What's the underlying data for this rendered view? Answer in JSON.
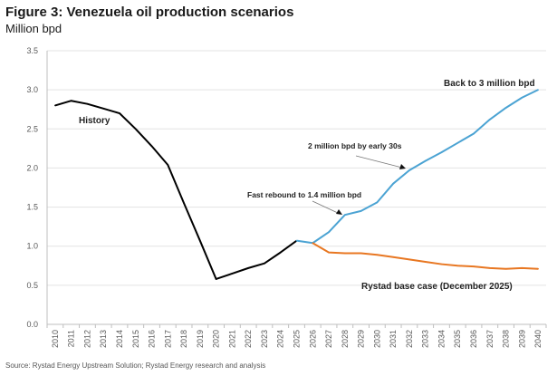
{
  "header": {
    "title": "Figure 3: Venezuela oil production scenarios",
    "subtitle": "Million bpd"
  },
  "footer": {
    "source": "Source: Rystad Energy Upstream Solution; Rystad Energy research and analysis"
  },
  "chart_data": {
    "type": "line",
    "title": "Figure 3: Venezuela oil production scenarios",
    "ylabel": "Million bpd",
    "xlabel": "",
    "ylim": [
      0,
      3.5
    ],
    "yticks": [
      "0.0",
      "0.5",
      "1.0",
      "1.5",
      "2.0",
      "2.5",
      "3.0",
      "3.5"
    ],
    "x": [
      2010,
      2011,
      2012,
      2013,
      2014,
      2015,
      2016,
      2017,
      2018,
      2019,
      2020,
      2021,
      2022,
      2023,
      2024,
      2025,
      2026,
      2027,
      2028,
      2029,
      2030,
      2031,
      2032,
      2033,
      2034,
      2035,
      2036,
      2037,
      2038,
      2039,
      2040
    ],
    "grid": "horizontal",
    "legend": "none",
    "series": [
      {
        "color": "#000000",
        "x": [
          2010,
          2011,
          2012,
          2013,
          2014,
          2015,
          2016,
          2017,
          2018,
          2019,
          2020,
          2021,
          2022,
          2023,
          2024,
          2025
        ],
        "values": [
          2.8,
          2.86,
          2.82,
          2.76,
          2.7,
          2.5,
          2.28,
          2.04,
          1.55,
          1.07,
          0.58,
          0.65,
          0.72,
          0.78,
          0.92,
          1.07
        ]
      },
      {
        "color": "#4BA3D3",
        "x": [
          2025,
          2026,
          2027,
          2028,
          2029,
          2030,
          2031,
          2032,
          2033,
          2034,
          2035,
          2036,
          2037,
          2038,
          2039,
          2040
        ],
        "values": [
          1.07,
          1.04,
          1.18,
          1.4,
          1.45,
          1.56,
          1.8,
          1.97,
          2.09,
          2.2,
          2.32,
          2.44,
          2.62,
          2.77,
          2.9,
          3.0
        ]
      },
      {
        "color": "#E87722",
        "x": [
          2026,
          2027,
          2028,
          2029,
          2030,
          2031,
          2032,
          2033,
          2034,
          2035,
          2036,
          2037,
          2038,
          2039,
          2040
        ],
        "values": [
          1.04,
          0.92,
          0.91,
          0.91,
          0.89,
          0.86,
          0.83,
          0.8,
          0.77,
          0.75,
          0.74,
          0.72,
          0.71,
          0.72,
          0.71
        ]
      }
    ],
    "annotations": {
      "history": "History",
      "fast_rebound": "Fast rebound to 1.4 million bpd",
      "early_30s": "2 million bpd by early 30s",
      "back_to_3": "Back to 3 million bpd",
      "base_case": "Rystad base case (December 2025)"
    }
  }
}
